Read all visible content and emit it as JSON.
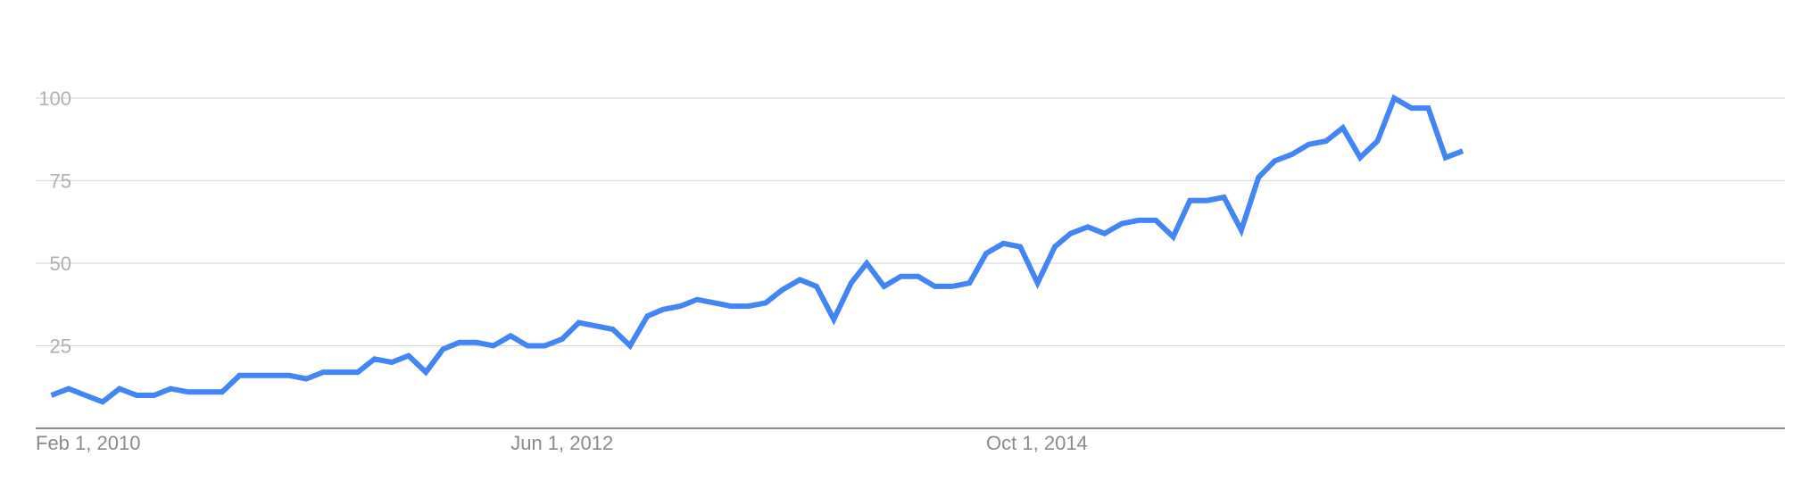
{
  "chart_data": {
    "type": "line",
    "title": "",
    "xlabel": "",
    "ylabel": "",
    "ylim": [
      0,
      100
    ],
    "grid": true,
    "yticks": [
      25,
      50,
      75,
      100
    ],
    "xticks": [
      {
        "label": "Feb 1, 2010",
        "x": "2010-02-01"
      },
      {
        "label": "Jun 1, 2012",
        "x": "2012-06-01"
      },
      {
        "label": "Oct 1, 2014",
        "x": "2014-10-01"
      }
    ],
    "x_range": [
      "2010-02-01",
      "2018-09-01"
    ],
    "color": "#4285f4",
    "series": [
      {
        "x": [
          "2010-03-01",
          "2010-04-01",
          "2010-05-01",
          "2010-06-01",
          "2010-07-01",
          "2010-08-01",
          "2010-09-01",
          "2010-10-01",
          "2010-11-01",
          "2010-12-01",
          "2011-01-01",
          "2011-02-01",
          "2011-03-01",
          "2011-04-01",
          "2011-05-01",
          "2011-06-01",
          "2011-07-01",
          "2011-08-01",
          "2011-09-01",
          "2011-10-01",
          "2011-11-01",
          "2011-12-01",
          "2012-01-01",
          "2012-02-01",
          "2012-03-01",
          "2012-04-01",
          "2012-05-01",
          "2012-06-01",
          "2012-07-01",
          "2012-08-01",
          "2012-09-01",
          "2012-10-01",
          "2012-11-01",
          "2012-12-01",
          "2013-01-01",
          "2013-02-01",
          "2013-03-01",
          "2013-04-01",
          "2013-05-01",
          "2013-06-01",
          "2013-07-01",
          "2013-08-01",
          "2013-09-01",
          "2013-10-01",
          "2013-11-01",
          "2013-12-01",
          "2014-01-01",
          "2014-02-01",
          "2014-03-01",
          "2014-04-01",
          "2014-05-01",
          "2014-06-01",
          "2014-07-01",
          "2014-08-01",
          "2014-09-01",
          "2014-10-01",
          "2014-11-01",
          "2014-12-01",
          "2015-01-01",
          "2015-02-01",
          "2015-03-01",
          "2015-04-01",
          "2015-05-01",
          "2015-06-01",
          "2015-07-01",
          "2015-08-01",
          "2015-09-01",
          "2015-10-01",
          "2015-11-01",
          "2015-12-01",
          "2016-01-01",
          "2016-02-01",
          "2016-03-01",
          "2016-04-01",
          "2016-05-01",
          "2016-06-01",
          "2016-07-01",
          "2016-08-01",
          "2016-09-01",
          "2016-10-01",
          "2016-11-01",
          "2016-12-01",
          "2017-01-01",
          "2017-02-01",
          "2017-03-01",
          "2017-04-01",
          "2017-05-01",
          "2017-06-01",
          "2017-07-01"
        ],
        "values": [
          10,
          12,
          10,
          8,
          12,
          10,
          10,
          12,
          11,
          11,
          11,
          16,
          16,
          16,
          16,
          15,
          17,
          17,
          17,
          21,
          20,
          22,
          17,
          24,
          26,
          26,
          25,
          28,
          25,
          25,
          27,
          32,
          31,
          30,
          25,
          34,
          36,
          37,
          39,
          38,
          37,
          37,
          38,
          42,
          45,
          43,
          33,
          44,
          50,
          43,
          46,
          46,
          43,
          43,
          44,
          53,
          56,
          55,
          44,
          55,
          59,
          61,
          59,
          62,
          63,
          63,
          58,
          69,
          69,
          70,
          60,
          76,
          81,
          83,
          86,
          87,
          91,
          82,
          87,
          100,
          97,
          97,
          82,
          84,
          null,
          null,
          null,
          null,
          null
        ]
      }
    ]
  }
}
